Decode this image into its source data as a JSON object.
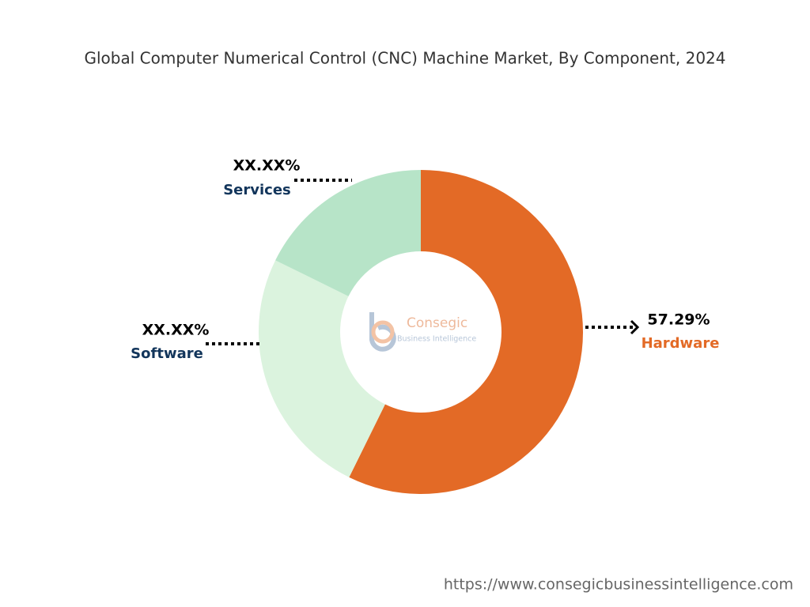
{
  "chart_data": {
    "type": "donut",
    "title": "Global Computer Numerical Control (CNC) Machine Market, By Component, 2024",
    "categories": [
      "Hardware",
      "Software",
      "Services"
    ],
    "values": [
      57.29,
      25,
      17.71
    ],
    "value_labels": [
      "57.29%",
      "XX.XX%",
      "XX.XX%"
    ],
    "colors": [
      "#e36a26",
      "#dbf3de",
      "#b7e4c8"
    ],
    "label_colors": [
      "#e36a26",
      "#12355b",
      "#12355b"
    ]
  },
  "watermark": {
    "name": "Consegic",
    "tagline": "Business Intelligence"
  },
  "source_url": "https://www.consegicbusinessintelligence.com"
}
